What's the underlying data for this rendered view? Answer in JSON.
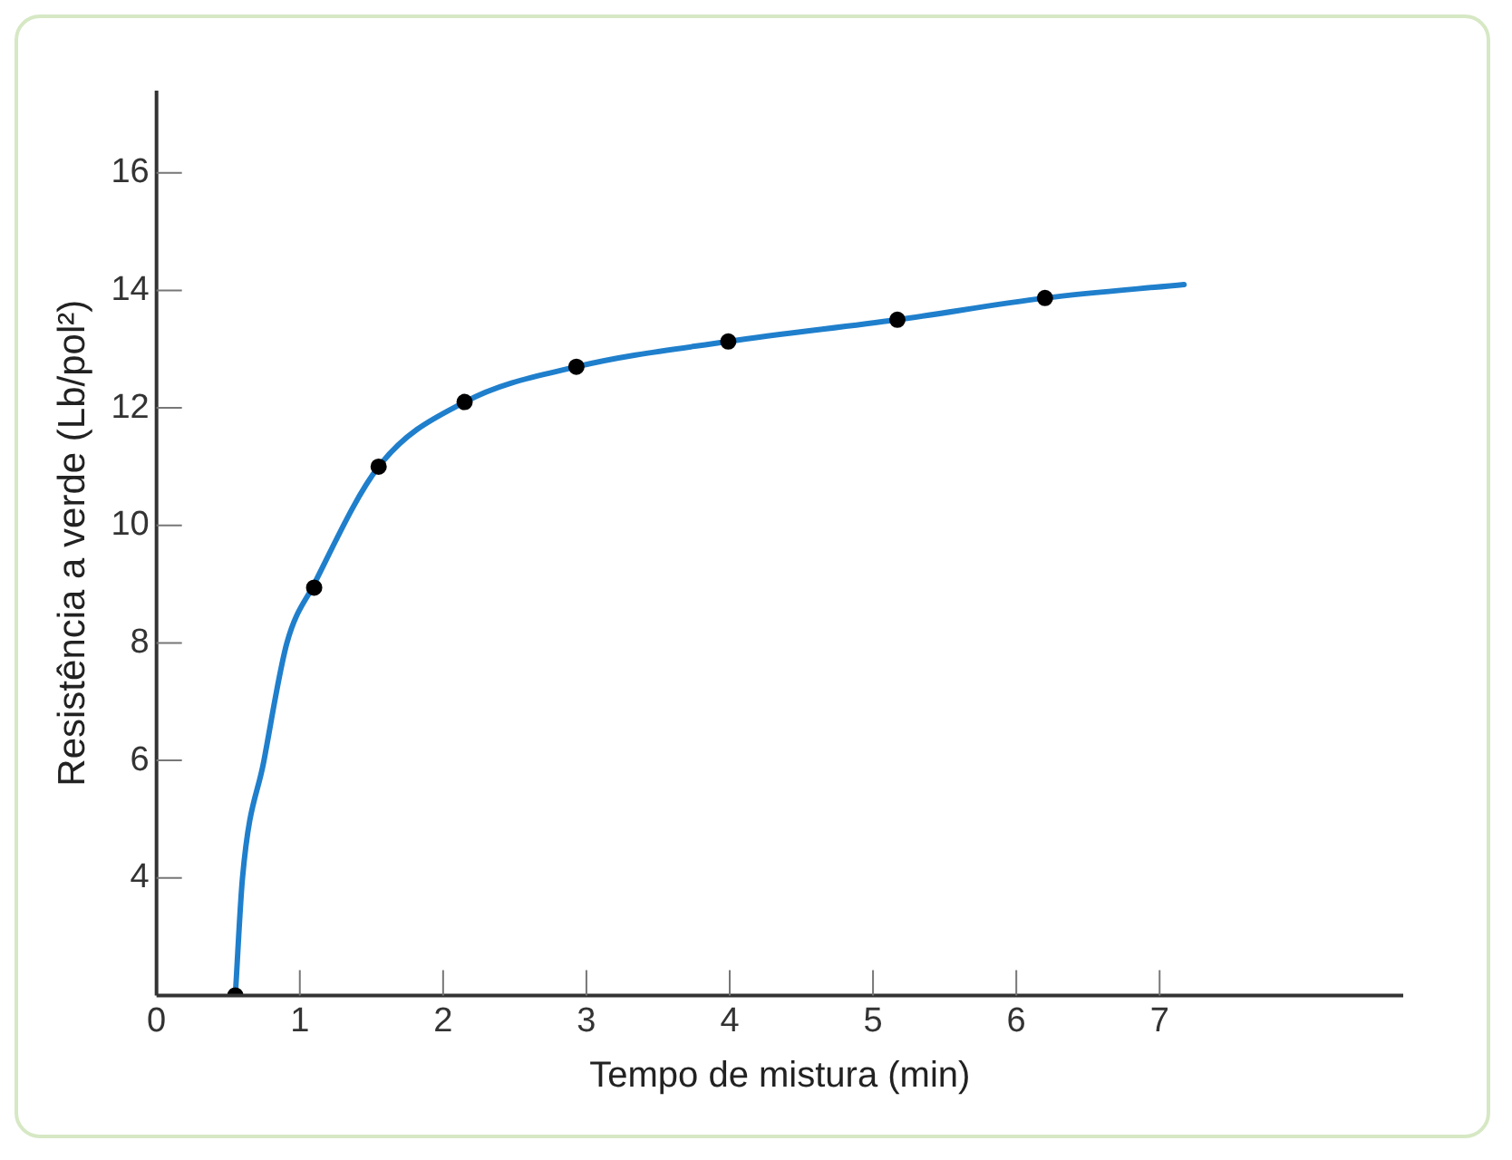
{
  "chart_data": {
    "type": "line",
    "xlabel": "Tempo de mistura (min)",
    "ylabel": "Resistência a verde (Lb/pol²)",
    "xlim": [
      0,
      8.7
    ],
    "xticks": [
      0,
      1,
      2,
      3,
      4,
      5,
      6,
      7
    ],
    "ylim": [
      2,
      17.4
    ],
    "yticks": [
      4,
      6,
      8,
      10,
      12,
      14,
      16
    ],
    "grid": false,
    "legend": false,
    "series": [
      {
        "color": "#1f7fcc",
        "marker": "none",
        "line_style": "solid",
        "x": [
          0.55,
          0.6,
          0.75,
          0.91,
          1.1,
          1.55,
          2.15,
          2.93,
          3.99,
          5.17,
          6.2,
          7.17
        ],
        "values": [
          2.0,
          4.0,
          6.0,
          8.0,
          9.0,
          11.0,
          12.1,
          12.7,
          13.13,
          13.5,
          13.87,
          14.1
        ]
      },
      {
        "type": "scatter",
        "color": "#000000",
        "marker": "circle",
        "x": [
          0.55,
          1.1,
          1.55,
          2.15,
          2.93,
          3.99,
          5.17,
          6.2
        ],
        "values": [
          2.0,
          8.94,
          11.0,
          12.1,
          12.7,
          13.13,
          13.5,
          13.87
        ]
      }
    ]
  }
}
